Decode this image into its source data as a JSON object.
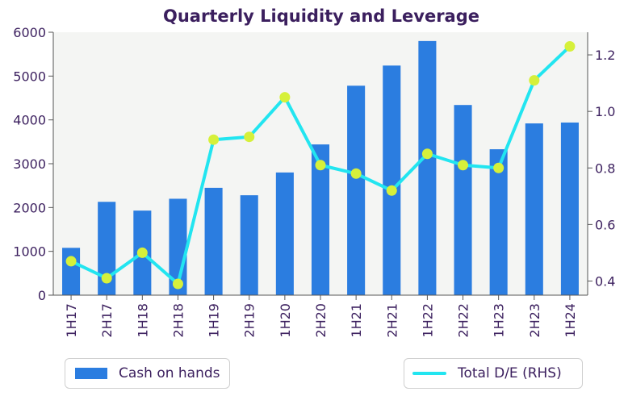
{
  "chart_data": {
    "type": "bar+line",
    "title": "Quarterly Liquidity and Leverage",
    "categories": [
      "1H17",
      "2H17",
      "1H18",
      "2H18",
      "1H19",
      "2H19",
      "1H20",
      "2H20",
      "1H21",
      "2H21",
      "1H22",
      "2H22",
      "1H23",
      "2H23",
      "1H24"
    ],
    "series": [
      {
        "name": "Cash on hands",
        "type": "bar",
        "axis": "left",
        "color": "#2b7de0",
        "values": [
          1080,
          2130,
          1930,
          2200,
          2450,
          2280,
          2800,
          3440,
          4780,
          5240,
          5800,
          4340,
          3330,
          3920,
          3940
        ]
      },
      {
        "name": "Total D/E (RHS)",
        "type": "line",
        "axis": "right",
        "color": "#22e5f0",
        "marker_color": "#d6f03a",
        "values": [
          0.47,
          0.41,
          0.5,
          0.39,
          0.9,
          0.91,
          1.05,
          0.81,
          0.78,
          0.72,
          0.85,
          0.81,
          0.8,
          1.11,
          1.23
        ]
      }
    ],
    "y_left": {
      "lim": [
        0,
        6000
      ],
      "ticks": [
        0,
        1000,
        2000,
        3000,
        4000,
        5000,
        6000
      ]
    },
    "y_right": {
      "lim": [
        0.35,
        1.28
      ],
      "ticks": [
        0.4,
        0.6,
        0.8,
        1.0,
        1.2
      ],
      "tick_labels": [
        "0.4",
        "0.6",
        "0.8",
        "1.0",
        "1.2"
      ]
    },
    "xlabel": "",
    "ylabel": "",
    "grid": false,
    "plot_background": "#f4f5f3",
    "legend": [
      {
        "label": "Cash on hands",
        "placement": "bottom-left"
      },
      {
        "label": "Total D/E (RHS)",
        "placement": "bottom-right"
      }
    ]
  },
  "colors": {
    "text": "#3b1f5e",
    "axis": "#555555"
  }
}
